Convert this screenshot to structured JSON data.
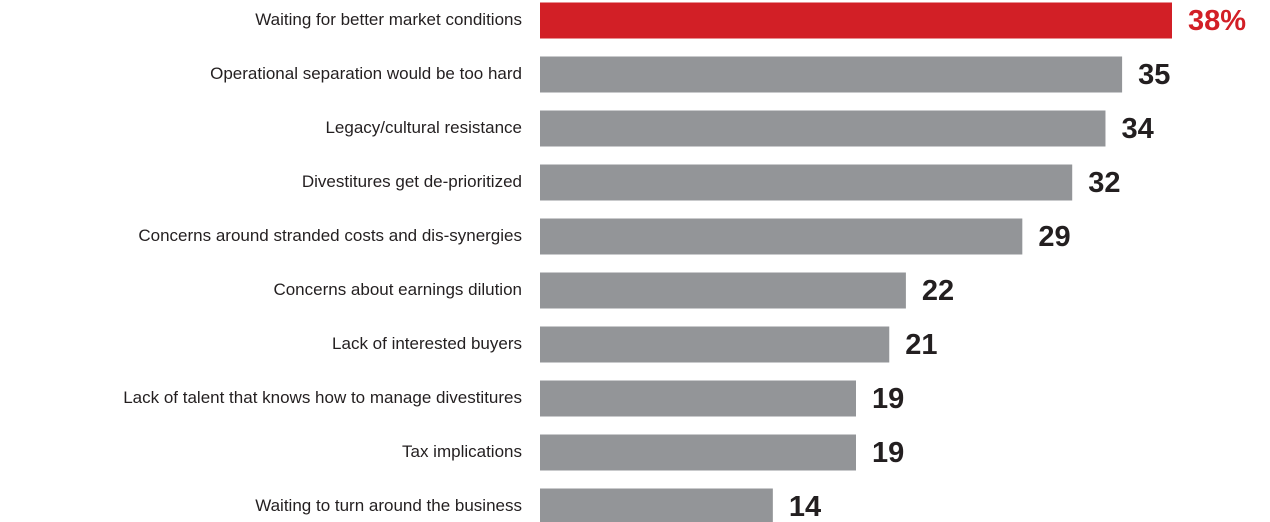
{
  "chart_data": {
    "type": "bar",
    "orientation": "horizontal",
    "categories": [
      "Waiting for better market conditions",
      "Operational separation would be too hard",
      "Legacy/cultural resistance",
      "Divestitures get de-prioritized",
      "Concerns around stranded costs and dis-synergies",
      "Concerns about earnings dilution",
      "Lack of interested buyers",
      "Lack of talent that knows how to manage divestitures",
      "Tax implications",
      "Waiting to turn around the business"
    ],
    "values": [
      38,
      35,
      34,
      32,
      29,
      22,
      21,
      19,
      19,
      14
    ],
    "value_labels": [
      "38%",
      "35",
      "34",
      "32",
      "29",
      "22",
      "21",
      "19",
      "19",
      "14"
    ],
    "colors": [
      "#d21f26",
      "#939598",
      "#939598",
      "#939598",
      "#939598",
      "#939598",
      "#939598",
      "#939598",
      "#939598",
      "#939598"
    ],
    "label_colors": [
      "#d21f26",
      "#231f20",
      "#231f20",
      "#231f20",
      "#231f20",
      "#231f20",
      "#231f20",
      "#231f20",
      "#231f20",
      "#231f20"
    ],
    "xlim": [
      0,
      38
    ]
  }
}
